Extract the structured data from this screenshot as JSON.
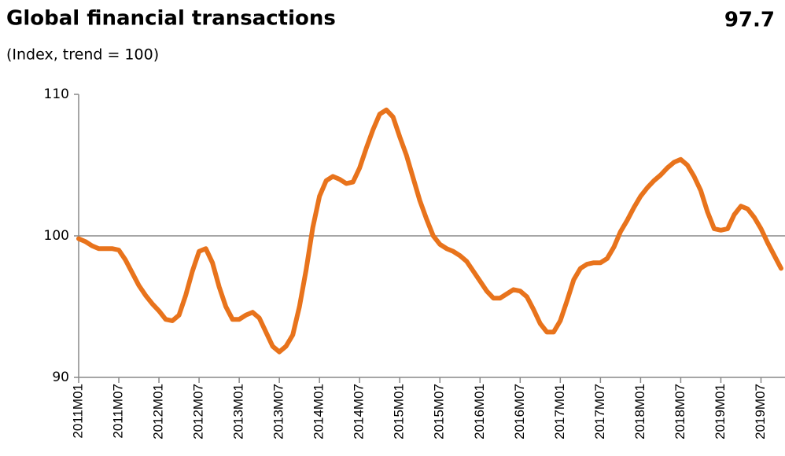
{
  "chart_data": {
    "type": "line",
    "title": "Global financial transactions",
    "subtitle": "(Index, trend = 100)",
    "annotation": "97.7",
    "categories": [
      "2011M01",
      null,
      null,
      null,
      null,
      null,
      "2011M07",
      null,
      null,
      null,
      null,
      null,
      "2012M01",
      null,
      null,
      null,
      null,
      null,
      "2012M07",
      null,
      null,
      null,
      null,
      null,
      "2013M01",
      null,
      null,
      null,
      null,
      null,
      "2013M07",
      null,
      null,
      null,
      null,
      null,
      "2014M01",
      null,
      null,
      null,
      null,
      null,
      "2014M07",
      null,
      null,
      null,
      null,
      null,
      "2015M01",
      null,
      null,
      null,
      null,
      null,
      "2015M07",
      null,
      null,
      null,
      null,
      null,
      "2016M01",
      null,
      null,
      null,
      null,
      null,
      "2016M07",
      null,
      null,
      null,
      null,
      null,
      "2017M01",
      null,
      null,
      null,
      null,
      null,
      "2017M07",
      null,
      null,
      null,
      null,
      null,
      "2018M01",
      null,
      null,
      null,
      null,
      null,
      "2018M07",
      null,
      null,
      null,
      null,
      null,
      "2019M01",
      null,
      null,
      null,
      null,
      null,
      "2019M07",
      null,
      null,
      null
    ],
    "values": [
      99.8,
      99.6,
      99.3,
      99.1,
      99.1,
      99.1,
      99.0,
      98.3,
      97.4,
      96.5,
      95.8,
      95.2,
      94.7,
      94.1,
      94.0,
      94.4,
      95.8,
      97.5,
      98.9,
      99.1,
      98.1,
      96.4,
      95.0,
      94.1,
      94.1,
      94.4,
      94.6,
      94.2,
      93.2,
      92.2,
      91.8,
      92.2,
      93.0,
      95.0,
      97.6,
      100.6,
      102.8,
      103.9,
      104.2,
      104.0,
      103.7,
      103.8,
      104.8,
      106.2,
      107.5,
      108.6,
      108.9,
      108.4,
      107.0,
      105.7,
      104.1,
      102.5,
      101.2,
      100.0,
      99.4,
      99.1,
      98.9,
      98.6,
      98.2,
      97.5,
      96.8,
      96.1,
      95.6,
      95.6,
      95.9,
      96.2,
      96.1,
      95.7,
      94.8,
      93.8,
      93.2,
      93.2,
      94.0,
      95.4,
      96.9,
      97.7,
      98.0,
      98.1,
      98.1,
      98.4,
      99.2,
      100.3,
      101.1,
      102.0,
      102.8,
      103.4,
      103.9,
      104.3,
      104.8,
      105.2,
      105.4,
      105.0,
      104.2,
      103.2,
      101.7,
      100.5,
      100.4,
      100.5,
      101.5,
      102.1,
      101.9,
      101.3,
      100.5,
      99.5,
      98.6,
      97.7
    ],
    "color": "#e8731c",
    "ylim": [
      90,
      110
    ],
    "yticks": [
      90,
      100,
      110
    ],
    "grid": true
  }
}
